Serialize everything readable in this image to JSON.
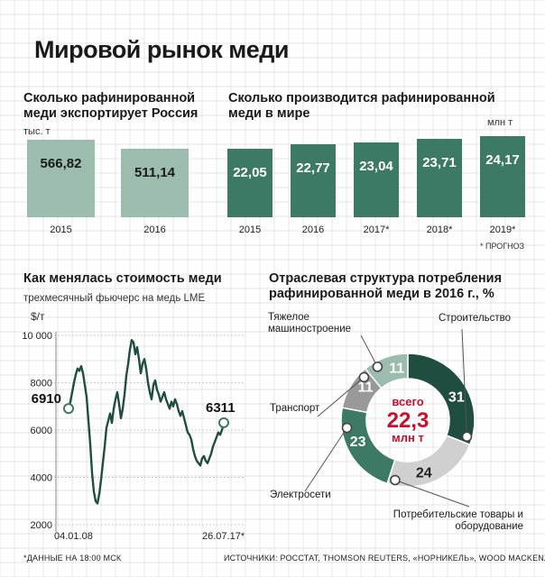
{
  "title": "Мировой рынок меди",
  "colors": {
    "light": "#9cbdae",
    "dark": "#3d7a66",
    "darkest": "#1f4d40",
    "grey": "#999999",
    "lightgrey": "#d0d0d0",
    "total": "#c8102e"
  },
  "chart_data": [
    {
      "type": "bar",
      "title": "Сколько рафинированной меди экспортирует Россия",
      "unit": "тыс. т",
      "categories": [
        "2015",
        "2016"
      ],
      "values": [
        566.82,
        511.14
      ],
      "labels": [
        "566,82",
        "511,14"
      ]
    },
    {
      "type": "bar",
      "title": "Сколько производится рафинированной меди в мире",
      "unit": "млн т",
      "categories": [
        "2015",
        "2016",
        "2017*",
        "2018*",
        "2019*"
      ],
      "values": [
        22.05,
        22.77,
        23.04,
        23.71,
        24.17
      ],
      "labels": [
        "22,05",
        "22,77",
        "23,04",
        "23,71",
        "24,17"
      ],
      "note": "* ПРОГНОЗ"
    },
    {
      "type": "line",
      "title": "Как менялась стоимость меди",
      "subtitle": "трехмесячный фьючерс на медь LME",
      "ylabel": "$/т",
      "ylim": [
        2000,
        10000
      ],
      "yticks": [
        2000,
        4000,
        6000,
        8000,
        10000
      ],
      "ytick_labels": [
        "2000",
        "4000",
        "6000",
        "8000",
        "10 000"
      ],
      "x_start_label": "04.01.08",
      "x_end_label": "26.07.17*",
      "start_value": 6910,
      "end_value": 6311,
      "start_label": "6910",
      "end_label": "6311",
      "series": [
        {
          "name": "LME",
          "values": [
            6910,
            7200,
            7600,
            8000,
            8350,
            8600,
            8500,
            8700,
            8400,
            7900,
            7400,
            6400,
            5400,
            4200,
            3400,
            3000,
            2900,
            3300,
            3900,
            4600,
            5300,
            6100,
            6400,
            6700,
            6300,
            6900,
            7300,
            7600,
            7100,
            6500,
            6900,
            7500,
            8300,
            8800,
            9400,
            9800,
            9700,
            9200,
            9500,
            9000,
            8400,
            8800,
            9000,
            8600,
            8000,
            7600,
            7300,
            7900,
            8100,
            7700,
            7500,
            7200,
            7400,
            7600,
            7300,
            7100,
            6900,
            7200,
            7000,
            7300,
            7100,
            6800,
            6600,
            6800,
            6500,
            6200,
            5900,
            5800,
            5600,
            5200,
            4900,
            4700,
            4600,
            4500,
            4800,
            4900,
            4700,
            4600,
            4800,
            5000,
            5300,
            5500,
            5700,
            5900,
            5800,
            6000,
            6311
          ]
        }
      ]
    },
    {
      "type": "pie",
      "title": "Отраслевая структура потребления рафинированной меди в 2016 г., %",
      "total_lines": [
        "всего",
        "22,3",
        "млн т"
      ],
      "slices": [
        {
          "name": "Строительство",
          "value": 31,
          "label": "31"
        },
        {
          "name": "Потребительские товары и оборудование",
          "value": 24,
          "label": "24"
        },
        {
          "name": "Электросети",
          "value": 23,
          "label": "23"
        },
        {
          "name": "Транспорт",
          "value": 11,
          "label": "11"
        },
        {
          "name": "Тяжелое машиностроение",
          "value": 11,
          "label": "11"
        }
      ]
    }
  ],
  "footer": {
    "note": "*ДАННЫЕ НА 18:00 МСК",
    "sources": "ИСТОЧНИКИ: РОССТАТ, THOMSON REUTERS, «НОРНИКЕЛЬ», WOOD MACKENZIE"
  }
}
